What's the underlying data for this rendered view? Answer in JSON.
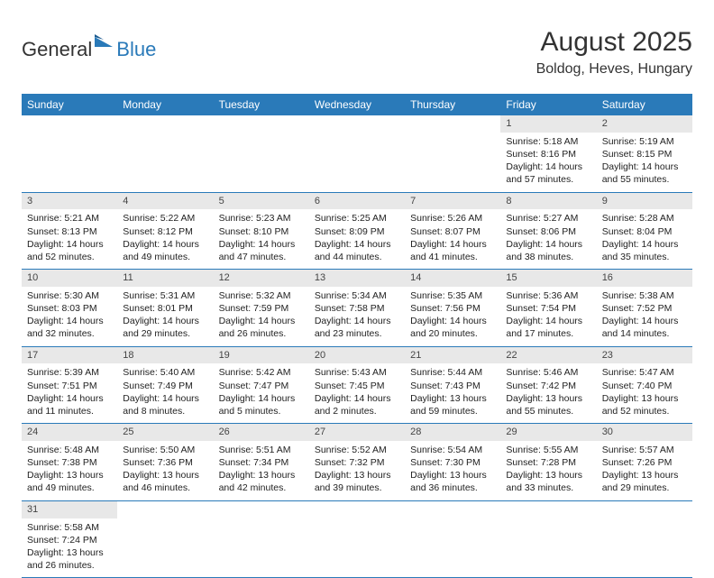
{
  "logo": {
    "part1": "General",
    "part2": "Blue"
  },
  "title": "August 2025",
  "location": "Boldog, Heves, Hungary",
  "colors": {
    "brand": "#2a7ab9",
    "dayBarBg": "#e8e8e8",
    "text": "#333333",
    "bg": "#ffffff"
  },
  "daysOfWeek": [
    "Sunday",
    "Monday",
    "Tuesday",
    "Wednesday",
    "Thursday",
    "Friday",
    "Saturday"
  ],
  "weeks": [
    [
      null,
      null,
      null,
      null,
      null,
      {
        "n": "1",
        "sunrise": "Sunrise: 5:18 AM",
        "sunset": "Sunset: 8:16 PM",
        "daylight": "Daylight: 14 hours and 57 minutes."
      },
      {
        "n": "2",
        "sunrise": "Sunrise: 5:19 AM",
        "sunset": "Sunset: 8:15 PM",
        "daylight": "Daylight: 14 hours and 55 minutes."
      }
    ],
    [
      {
        "n": "3",
        "sunrise": "Sunrise: 5:21 AM",
        "sunset": "Sunset: 8:13 PM",
        "daylight": "Daylight: 14 hours and 52 minutes."
      },
      {
        "n": "4",
        "sunrise": "Sunrise: 5:22 AM",
        "sunset": "Sunset: 8:12 PM",
        "daylight": "Daylight: 14 hours and 49 minutes."
      },
      {
        "n": "5",
        "sunrise": "Sunrise: 5:23 AM",
        "sunset": "Sunset: 8:10 PM",
        "daylight": "Daylight: 14 hours and 47 minutes."
      },
      {
        "n": "6",
        "sunrise": "Sunrise: 5:25 AM",
        "sunset": "Sunset: 8:09 PM",
        "daylight": "Daylight: 14 hours and 44 minutes."
      },
      {
        "n": "7",
        "sunrise": "Sunrise: 5:26 AM",
        "sunset": "Sunset: 8:07 PM",
        "daylight": "Daylight: 14 hours and 41 minutes."
      },
      {
        "n": "8",
        "sunrise": "Sunrise: 5:27 AM",
        "sunset": "Sunset: 8:06 PM",
        "daylight": "Daylight: 14 hours and 38 minutes."
      },
      {
        "n": "9",
        "sunrise": "Sunrise: 5:28 AM",
        "sunset": "Sunset: 8:04 PM",
        "daylight": "Daylight: 14 hours and 35 minutes."
      }
    ],
    [
      {
        "n": "10",
        "sunrise": "Sunrise: 5:30 AM",
        "sunset": "Sunset: 8:03 PM",
        "daylight": "Daylight: 14 hours and 32 minutes."
      },
      {
        "n": "11",
        "sunrise": "Sunrise: 5:31 AM",
        "sunset": "Sunset: 8:01 PM",
        "daylight": "Daylight: 14 hours and 29 minutes."
      },
      {
        "n": "12",
        "sunrise": "Sunrise: 5:32 AM",
        "sunset": "Sunset: 7:59 PM",
        "daylight": "Daylight: 14 hours and 26 minutes."
      },
      {
        "n": "13",
        "sunrise": "Sunrise: 5:34 AM",
        "sunset": "Sunset: 7:58 PM",
        "daylight": "Daylight: 14 hours and 23 minutes."
      },
      {
        "n": "14",
        "sunrise": "Sunrise: 5:35 AM",
        "sunset": "Sunset: 7:56 PM",
        "daylight": "Daylight: 14 hours and 20 minutes."
      },
      {
        "n": "15",
        "sunrise": "Sunrise: 5:36 AM",
        "sunset": "Sunset: 7:54 PM",
        "daylight": "Daylight: 14 hours and 17 minutes."
      },
      {
        "n": "16",
        "sunrise": "Sunrise: 5:38 AM",
        "sunset": "Sunset: 7:52 PM",
        "daylight": "Daylight: 14 hours and 14 minutes."
      }
    ],
    [
      {
        "n": "17",
        "sunrise": "Sunrise: 5:39 AM",
        "sunset": "Sunset: 7:51 PM",
        "daylight": "Daylight: 14 hours and 11 minutes."
      },
      {
        "n": "18",
        "sunrise": "Sunrise: 5:40 AM",
        "sunset": "Sunset: 7:49 PM",
        "daylight": "Daylight: 14 hours and 8 minutes."
      },
      {
        "n": "19",
        "sunrise": "Sunrise: 5:42 AM",
        "sunset": "Sunset: 7:47 PM",
        "daylight": "Daylight: 14 hours and 5 minutes."
      },
      {
        "n": "20",
        "sunrise": "Sunrise: 5:43 AM",
        "sunset": "Sunset: 7:45 PM",
        "daylight": "Daylight: 14 hours and 2 minutes."
      },
      {
        "n": "21",
        "sunrise": "Sunrise: 5:44 AM",
        "sunset": "Sunset: 7:43 PM",
        "daylight": "Daylight: 13 hours and 59 minutes."
      },
      {
        "n": "22",
        "sunrise": "Sunrise: 5:46 AM",
        "sunset": "Sunset: 7:42 PM",
        "daylight": "Daylight: 13 hours and 55 minutes."
      },
      {
        "n": "23",
        "sunrise": "Sunrise: 5:47 AM",
        "sunset": "Sunset: 7:40 PM",
        "daylight": "Daylight: 13 hours and 52 minutes."
      }
    ],
    [
      {
        "n": "24",
        "sunrise": "Sunrise: 5:48 AM",
        "sunset": "Sunset: 7:38 PM",
        "daylight": "Daylight: 13 hours and 49 minutes."
      },
      {
        "n": "25",
        "sunrise": "Sunrise: 5:50 AM",
        "sunset": "Sunset: 7:36 PM",
        "daylight": "Daylight: 13 hours and 46 minutes."
      },
      {
        "n": "26",
        "sunrise": "Sunrise: 5:51 AM",
        "sunset": "Sunset: 7:34 PM",
        "daylight": "Daylight: 13 hours and 42 minutes."
      },
      {
        "n": "27",
        "sunrise": "Sunrise: 5:52 AM",
        "sunset": "Sunset: 7:32 PM",
        "daylight": "Daylight: 13 hours and 39 minutes."
      },
      {
        "n": "28",
        "sunrise": "Sunrise: 5:54 AM",
        "sunset": "Sunset: 7:30 PM",
        "daylight": "Daylight: 13 hours and 36 minutes."
      },
      {
        "n": "29",
        "sunrise": "Sunrise: 5:55 AM",
        "sunset": "Sunset: 7:28 PM",
        "daylight": "Daylight: 13 hours and 33 minutes."
      },
      {
        "n": "30",
        "sunrise": "Sunrise: 5:57 AM",
        "sunset": "Sunset: 7:26 PM",
        "daylight": "Daylight: 13 hours and 29 minutes."
      }
    ],
    [
      {
        "n": "31",
        "sunrise": "Sunrise: 5:58 AM",
        "sunset": "Sunset: 7:24 PM",
        "daylight": "Daylight: 13 hours and 26 minutes."
      },
      null,
      null,
      null,
      null,
      null,
      null
    ]
  ]
}
